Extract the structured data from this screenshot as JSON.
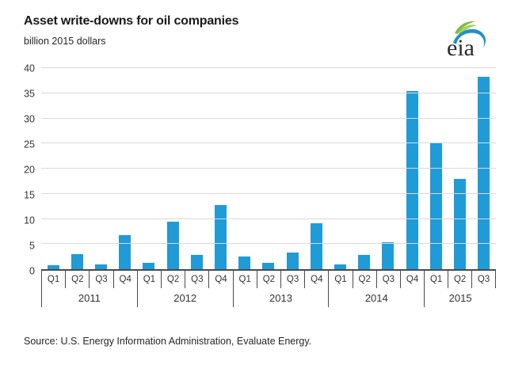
{
  "header": {
    "title": "Asset write-downs for oil companies",
    "subtitle": "billion 2015 dollars",
    "logo_text": "eia"
  },
  "source": "Source:  U.S. Energy Information Administration, Evaluate Energy.",
  "colors": {
    "bar": "#1f9bd7",
    "gridline": "#d9d9d9",
    "axis": "#4a4a4a",
    "logo_blue": "#2090c9",
    "logo_green": "#6ab023",
    "logo_text": "#2b2b2b"
  },
  "chart_data": {
    "type": "bar",
    "title": "Asset write-downs for oil companies",
    "ylabel": "billion 2015 dollars",
    "xlabel": "",
    "ylim": [
      0,
      40
    ],
    "yticks": [
      0,
      5,
      10,
      15,
      20,
      25,
      30,
      35,
      40
    ],
    "grid": true,
    "legend": "none",
    "categories": [
      "2011 Q1",
      "2011 Q2",
      "2011 Q3",
      "2011 Q4",
      "2012 Q1",
      "2012 Q2",
      "2012 Q3",
      "2012 Q4",
      "2013 Q1",
      "2013 Q2",
      "2013 Q3",
      "2013 Q4",
      "2014 Q1",
      "2014 Q2",
      "2014 Q3",
      "2014 Q4",
      "2015 Q1",
      "2015 Q2",
      "2015 Q3"
    ],
    "values": [
      0.8,
      3.0,
      1.0,
      6.7,
      1.2,
      9.5,
      2.8,
      12.7,
      2.5,
      1.2,
      3.3,
      9.1,
      1.0,
      2.9,
      5.4,
      35.5,
      25.1,
      18.0,
      38.2
    ],
    "groups": [
      {
        "year": "2011",
        "quarters": [
          "Q1",
          "Q2",
          "Q3",
          "Q4"
        ],
        "values": [
          0.8,
          3.0,
          1.0,
          6.7
        ]
      },
      {
        "year": "2012",
        "quarters": [
          "Q1",
          "Q2",
          "Q3",
          "Q4"
        ],
        "values": [
          1.2,
          9.5,
          2.8,
          12.7
        ]
      },
      {
        "year": "2013",
        "quarters": [
          "Q1",
          "Q2",
          "Q3",
          "Q4"
        ],
        "values": [
          2.5,
          1.2,
          3.3,
          9.1
        ]
      },
      {
        "year": "2014",
        "quarters": [
          "Q1",
          "Q2",
          "Q3",
          "Q4"
        ],
        "values": [
          1.0,
          2.9,
          5.4,
          35.5
        ]
      },
      {
        "year": "2015",
        "quarters": [
          "Q1",
          "Q2",
          "Q3"
        ],
        "values": [
          25.1,
          18.0,
          38.2
        ]
      }
    ]
  }
}
